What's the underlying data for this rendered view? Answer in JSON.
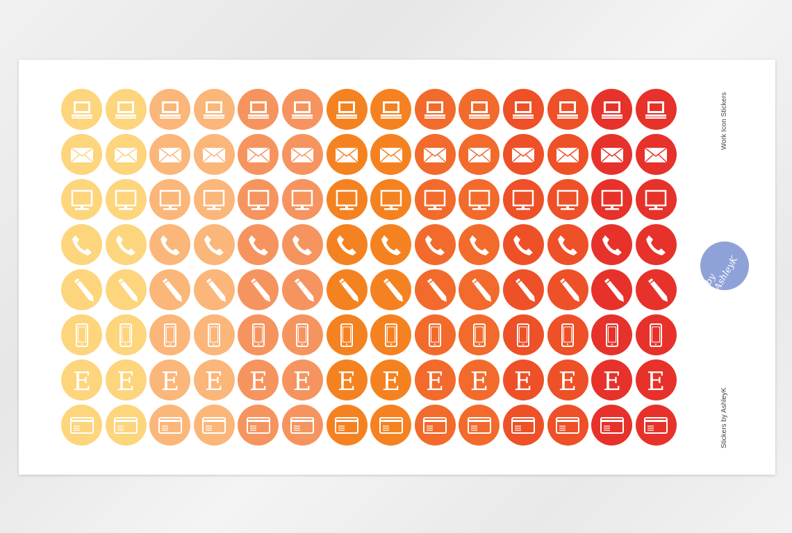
{
  "sheet": {
    "title": "Work Icon Stickers",
    "credit": "Stickers by AshleyK",
    "logo_text": "by AshleyK"
  },
  "rows": [
    "laptop-icon",
    "envelope-icon",
    "monitor-icon",
    "phone-icon",
    "pencil-icon",
    "smartphone-icon",
    "letter-e-icon",
    "credit-card-icon"
  ],
  "letter_e": "E",
  "column_colors": [
    "#fdd57d",
    "#fdd57d",
    "#fbb67a",
    "#fbb67a",
    "#f6945f",
    "#f6945f",
    "#f58220",
    "#f58220",
    "#f26b2c",
    "#f26b2c",
    "#ee5027",
    "#ee5027",
    "#e6322a",
    "#e6322a"
  ],
  "logo_color": "#8fa2d8"
}
